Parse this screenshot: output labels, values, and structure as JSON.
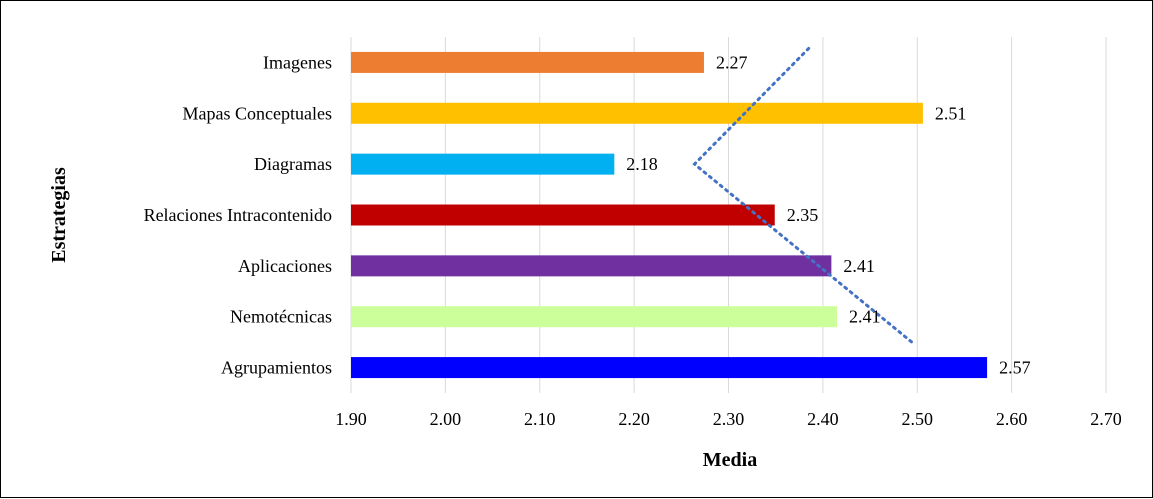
{
  "chart_data": {
    "type": "bar",
    "orientation": "horizontal",
    "categories": [
      "Imagenes",
      "Mapas Conceptuales",
      "Diagramas",
      "Relaciones Intracontenido",
      "Aplicaciones",
      "Nemotécnicas",
      "Agrupamientos"
    ],
    "values": [
      2.274,
      2.506,
      2.179,
      2.349,
      2.409,
      2.415,
      2.574
    ],
    "value_labels": [
      "2.27",
      "2.51",
      "2.18",
      "2.35",
      "2.41",
      "2.41",
      "2.57"
    ],
    "colors": [
      "#ED7D31",
      "#FFC000",
      "#00B0F0",
      "#C00000",
      "#7030A0",
      "#CCFF99",
      "#0000FF"
    ],
    "xlim": [
      1.9,
      2.7
    ],
    "xticks": [
      "1.90",
      "2.00",
      "2.10",
      "2.20",
      "2.30",
      "2.40",
      "2.50",
      "2.60",
      "2.70"
    ],
    "xlabel": "Media",
    "ylabel": "Estrategias",
    "grid": "vertical",
    "trendline": {
      "style": "dotted",
      "color": "#4472C4",
      "points": [
        [
          2.385,
          "Imagenes"
        ],
        [
          2.264,
          "Diagramas"
        ],
        [
          2.495,
          "Nemotécnicas"
        ]
      ]
    }
  }
}
